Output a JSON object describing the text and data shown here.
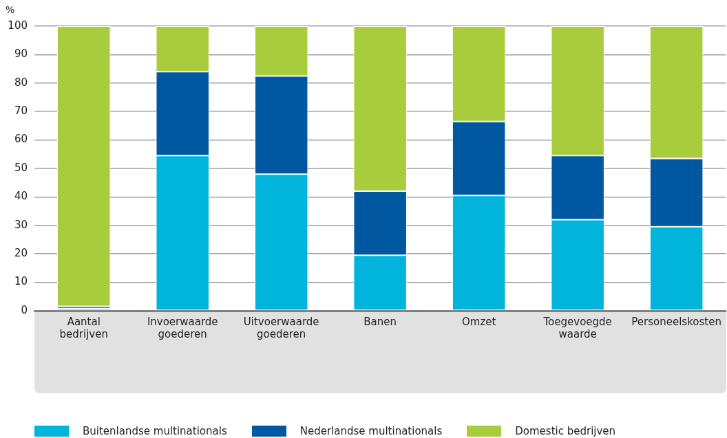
{
  "chart_data": {
    "type": "bar",
    "ylabel": "%",
    "stacked": true,
    "categories": [
      "Aantal bedrijven",
      "Invoerwaarde goederen",
      "Uitvoerwaarde goederen",
      "Banen",
      "Omzet",
      "Toegevoegde waarde",
      "Personeelskosten"
    ],
    "series": [
      {
        "name": "Buitenlandse multinationals",
        "color": "#00b4dc",
        "values": [
          0.8,
          54.5,
          48,
          19.5,
          40.5,
          32,
          29.5
        ]
      },
      {
        "name": "Nederlandse multinationals",
        "color": "#0058a0",
        "values": [
          0.8,
          29.5,
          34.5,
          22.5,
          26,
          22.5,
          24
        ]
      },
      {
        "name": "Domestic bedrijven",
        "color": "#a8cc3c",
        "values": [
          98.4,
          16,
          17.5,
          58,
          33.5,
          45.5,
          46.5
        ]
      }
    ],
    "ylim": [
      0,
      100
    ],
    "yticks": [
      0,
      10,
      20,
      30,
      40,
      50,
      60,
      70,
      80,
      90,
      100
    ],
    "grid": "y",
    "legend": "bottom"
  }
}
